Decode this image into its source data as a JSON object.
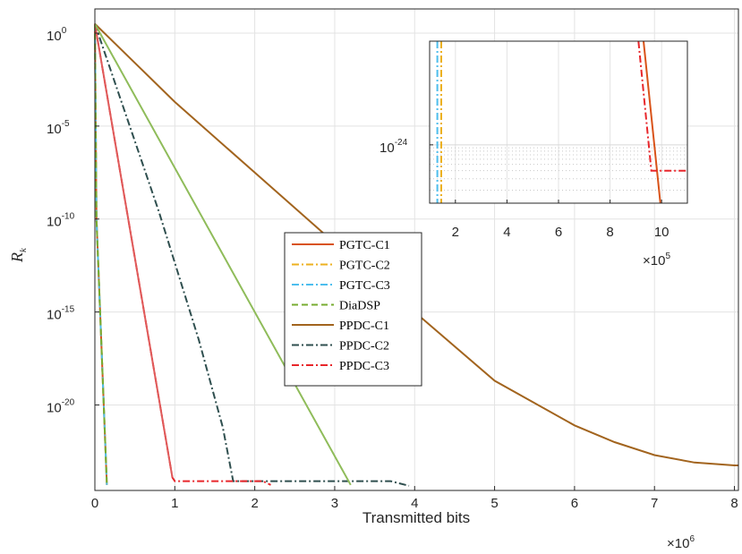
{
  "chart_data": [
    {
      "type": "line",
      "title": "",
      "xlabel": "Transmitted bits",
      "ylabel": "R_k",
      "x_exponent_label": "×10^6",
      "x_ticks": [
        "0",
        "1",
        "2",
        "3",
        "4",
        "5",
        "6",
        "7",
        "8"
      ],
      "y_ticks": [
        {
          "base": "10",
          "exp": "0"
        },
        {
          "base": "10",
          "exp": "-5"
        },
        {
          "base": "10",
          "exp": "-10"
        },
        {
          "base": "10",
          "exp": "-15"
        },
        {
          "base": "10",
          "exp": "-20"
        }
      ],
      "xlim": [
        0,
        8.05
      ],
      "ylim_log10": [
        -24.6,
        1.3
      ],
      "y_scale": "log",
      "grid": true,
      "legend_placement": "center-left",
      "series": [
        {
          "name": "PGTC-C1",
          "color": "#d95319",
          "dash": "solid",
          "x": [
            0,
            0.02,
            0.15
          ],
          "y_log10": [
            0.5,
            -10,
            -24.3
          ]
        },
        {
          "name": "PGTC-C2",
          "color": "#edb120",
          "dash": "dashdot",
          "x": [
            0,
            0.02,
            0.15
          ],
          "y_log10": [
            0.5,
            -10,
            -24.3
          ]
        },
        {
          "name": "PGTC-C3",
          "color": "#4dbeee",
          "dash": "dashdot",
          "x": [
            0,
            0.02,
            0.15
          ],
          "y_log10": [
            0.5,
            -10,
            -24.3
          ]
        },
        {
          "name": "DiaDSP",
          "color": "#77ac30",
          "dash": "dashed",
          "x": [
            0,
            0.02,
            0.15
          ],
          "y_log10": [
            0.5,
            -10,
            -24.3
          ]
        },
        {
          "name": "PPDC-C1",
          "color": "#a2641e",
          "dash": "solid",
          "x": [
            0,
            1,
            2,
            3,
            4,
            5,
            6,
            6.5,
            7,
            7.5,
            8,
            8.05
          ],
          "y_log10": [
            0.5,
            -3.7,
            -7.5,
            -11.3,
            -15.0,
            -18.7,
            -21.1,
            -22.0,
            -22.7,
            -23.1,
            -23.25,
            -23.25
          ]
        },
        {
          "name": "PPDC-C2",
          "color": "#2f4f4f",
          "dash": "dashdot",
          "x": [
            0,
            0.8,
            1.3,
            1.6,
            1.73,
            3.7,
            3.93
          ],
          "y_log10": [
            0.5,
            -9.6,
            -16.5,
            -21.2,
            -24.1,
            -24.1,
            -24.35
          ]
        },
        {
          "name": "PPDC-C3",
          "color": "#e8262b",
          "dash": "dashdot",
          "x": [
            0,
            0.97,
            1.0,
            2.1,
            2.2
          ],
          "y_log10": [
            0.5,
            -23.9,
            -24.1,
            -24.1,
            -24.3
          ]
        },
        {
          "name": "",
          "color": "#e05a5a",
          "dash": "solid",
          "x": [
            0,
            0.97
          ],
          "y_log10": [
            0.5,
            -23.9
          ]
        },
        {
          "name": "",
          "color": "#8fbc5a",
          "dash": "solid",
          "x": [
            0,
            3.2
          ],
          "y_log10": [
            0.5,
            -24.3
          ]
        }
      ]
    },
    {
      "type": "line",
      "title": "",
      "x_ticks": [
        "2",
        "4",
        "6",
        "8",
        "10"
      ],
      "x_exponent_label": "×10^5",
      "y_ticks": [
        {
          "base": "10",
          "exp": "-24"
        }
      ],
      "xlim": [
        1.0,
        11.0
      ],
      "ylim_log10": [
        -24.9,
        -22.4
      ],
      "y_scale": "log",
      "grid": true,
      "series": [
        {
          "name": "PGTC-C2",
          "color": "#edb120",
          "dash": "dashdot",
          "x": [
            1.45,
            1.45
          ],
          "y_log10": [
            -22.4,
            -24.9
          ]
        },
        {
          "name": "PGTC-C3",
          "color": "#4dbeee",
          "dash": "dashdot",
          "x": [
            1.3,
            1.3
          ],
          "y_log10": [
            -22.4,
            -24.9
          ]
        },
        {
          "name": "PPDC-C1",
          "color": "#d95319",
          "dash": "solid",
          "x": [
            9.3,
            9.95
          ],
          "y_log10": [
            -22.4,
            -24.9
          ]
        },
        {
          "name": "PPDC-C3",
          "color": "#e8262b",
          "dash": "dashdot",
          "x": [
            9.1,
            9.6,
            11.0
          ],
          "y_log10": [
            -22.4,
            -24.4,
            -24.4
          ]
        }
      ]
    }
  ]
}
